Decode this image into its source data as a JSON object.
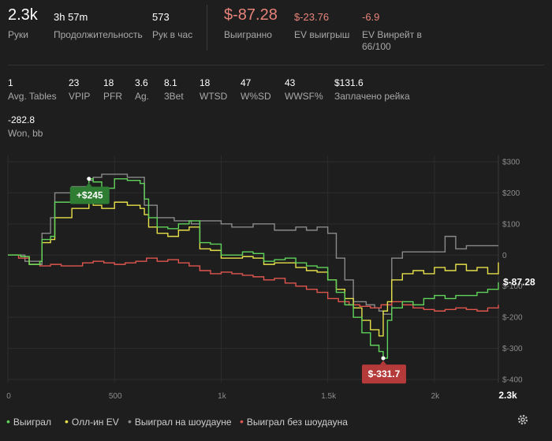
{
  "summary": {
    "hands": {
      "value": "2.3k",
      "label": "Руки"
    },
    "duration": {
      "value": "3h 57m",
      "label": "Продолжительность"
    },
    "hands_per_hour": {
      "value": "573",
      "label": "Рук в час"
    },
    "won": {
      "value": "$-87.28",
      "label": "Выигранно"
    },
    "ev_won": {
      "value": "$-23.76",
      "label": "EV выигрыш"
    },
    "ev_winrate": {
      "value": "-6.9",
      "label_line1": "EV Винрейт в",
      "label_line2": "66/100"
    }
  },
  "stats": [
    {
      "value": "1",
      "label": "Avg. Tables"
    },
    {
      "value": "23",
      "label": "VPIP"
    },
    {
      "value": "18",
      "label": "PFR"
    },
    {
      "value": "3.6",
      "label": "Ag."
    },
    {
      "value": "8.1",
      "label": "3Bet"
    },
    {
      "value": "18",
      "label": "WTSD"
    },
    {
      "value": "47",
      "label": "W%SD"
    },
    {
      "value": "43",
      "label": "WWSF%"
    },
    {
      "value": "$131.6",
      "label": "Заплачено рейка"
    }
  ],
  "won_bb": {
    "value": "-282.8",
    "label": "Won, bb"
  },
  "colors": {
    "won": "#5fd35a",
    "allin_ev": "#e6e04a",
    "showdown": "#8a8a8a",
    "non_showdown": "#e0554e",
    "max_badge": "#2e7d32",
    "min_badge": "#b53a3a"
  },
  "chart_data": {
    "type": "line",
    "x_ticks": [
      "0",
      "500",
      "1k",
      "1.5k",
      "2k",
      "2.3k"
    ],
    "x_tick_values": [
      0,
      500,
      1000,
      1500,
      2000,
      2300
    ],
    "y_ticks": [
      "$300",
      "$200",
      "$100",
      "0",
      "$-100",
      "$-200",
      "$-300",
      "$-400"
    ],
    "y_tick_values": [
      300,
      200,
      100,
      0,
      -100,
      -200,
      -300,
      -400
    ],
    "xlim": [
      0,
      2300
    ],
    "ylim": [
      -400,
      300
    ],
    "grid": true,
    "legend_position": "bottom-left",
    "annotations": {
      "max": {
        "label": "+$245",
        "x": 380,
        "y": 245
      },
      "min": {
        "label": "$-331.7",
        "x": 1760,
        "y": -331.7
      },
      "end": {
        "label": "$-87.28",
        "x": 2300,
        "y": -87.28
      }
    },
    "series": [
      {
        "name": "Выиграл",
        "colorKey": "won",
        "x": [
          0,
          60,
          100,
          150,
          160,
          200,
          220,
          300,
          380,
          400,
          440,
          500,
          560,
          620,
          640,
          660,
          700,
          750,
          800,
          850,
          900,
          950,
          1000,
          1050,
          1100,
          1150,
          1200,
          1250,
          1300,
          1350,
          1400,
          1450,
          1500,
          1540,
          1580,
          1620,
          1660,
          1700,
          1740,
          1760,
          1780,
          1800,
          1850,
          1900,
          1950,
          2000,
          2050,
          2100,
          2150,
          2200,
          2250,
          2300
        ],
        "y": [
          0,
          -5,
          -30,
          -20,
          50,
          60,
          170,
          200,
          245,
          235,
          215,
          245,
          240,
          230,
          180,
          120,
          90,
          85,
          100,
          110,
          40,
          35,
          0,
          0,
          10,
          5,
          -20,
          -15,
          -10,
          -25,
          -35,
          -40,
          -80,
          -120,
          -160,
          -200,
          -250,
          -290,
          -310,
          -331.7,
          -210,
          -170,
          -150,
          -160,
          -140,
          -130,
          -140,
          -130,
          -130,
          -120,
          -110,
          -87.28
        ]
      },
      {
        "name": "Олл-ин EV",
        "colorKey": "allin_ev",
        "x": [
          0,
          60,
          100,
          150,
          160,
          200,
          220,
          300,
          380,
          400,
          440,
          500,
          560,
          620,
          640,
          660,
          700,
          750,
          800,
          850,
          900,
          950,
          1000,
          1050,
          1100,
          1150,
          1200,
          1250,
          1300,
          1350,
          1400,
          1450,
          1500,
          1540,
          1580,
          1620,
          1660,
          1700,
          1740,
          1760,
          1780,
          1800,
          1850,
          1900,
          1950,
          2000,
          2050,
          2100,
          2150,
          2200,
          2250,
          2300
        ],
        "y": [
          0,
          -5,
          -30,
          -20,
          40,
          50,
          120,
          150,
          170,
          160,
          150,
          170,
          160,
          150,
          130,
          90,
          70,
          60,
          80,
          90,
          20,
          15,
          -10,
          -10,
          -5,
          -10,
          -30,
          -25,
          -25,
          -40,
          -50,
          -55,
          -80,
          -110,
          -140,
          -170,
          -210,
          -240,
          -260,
          -180,
          -150,
          -80,
          -60,
          -50,
          -60,
          -40,
          -50,
          -30,
          -50,
          -40,
          -60,
          -23.76
        ]
      },
      {
        "name": "Выиграл на шоудауне",
        "colorKey": "showdown",
        "x": [
          0,
          50,
          80,
          150,
          160,
          200,
          220,
          300,
          380,
          400,
          440,
          480,
          560,
          640,
          700,
          780,
          860,
          900,
          1000,
          1050,
          1150,
          1250,
          1350,
          1400,
          1450,
          1500,
          1540,
          1580,
          1620,
          1680,
          1720,
          1740,
          1760,
          1800,
          1850,
          1900,
          1950,
          2000,
          2050,
          2100,
          2150,
          2200,
          2250,
          2300
        ],
        "y": [
          0,
          0,
          -20,
          -30,
          70,
          120,
          200,
          220,
          240,
          250,
          260,
          260,
          250,
          160,
          120,
          110,
          100,
          110,
          100,
          90,
          100,
          80,
          90,
          80,
          90,
          70,
          -10,
          -80,
          -150,
          -160,
          -170,
          -180,
          -190,
          -10,
          10,
          10,
          10,
          10,
          60,
          20,
          30,
          30,
          30,
          30
        ]
      },
      {
        "name": "Выиграл без шоудауна",
        "colorKey": "non_showdown",
        "x": [
          0,
          50,
          100,
          150,
          200,
          250,
          300,
          350,
          400,
          450,
          500,
          550,
          600,
          650,
          700,
          750,
          800,
          850,
          900,
          950,
          1000,
          1050,
          1100,
          1150,
          1200,
          1250,
          1300,
          1350,
          1400,
          1450,
          1500,
          1550,
          1600,
          1650,
          1700,
          1750,
          1800,
          1850,
          1900,
          1950,
          2000,
          2050,
          2100,
          2150,
          2200,
          2250,
          2300
        ],
        "y": [
          0,
          -10,
          -30,
          -35,
          -30,
          -35,
          -35,
          -25,
          -20,
          -25,
          -30,
          -25,
          -20,
          -10,
          -20,
          -15,
          -25,
          -35,
          -50,
          -60,
          -55,
          -60,
          -65,
          -70,
          -80,
          -75,
          -90,
          -100,
          -110,
          -120,
          -140,
          -150,
          -160,
          -165,
          -170,
          -160,
          -150,
          -160,
          -170,
          -175,
          -180,
          -175,
          -170,
          -175,
          -180,
          -170,
          -160
        ]
      }
    ]
  }
}
